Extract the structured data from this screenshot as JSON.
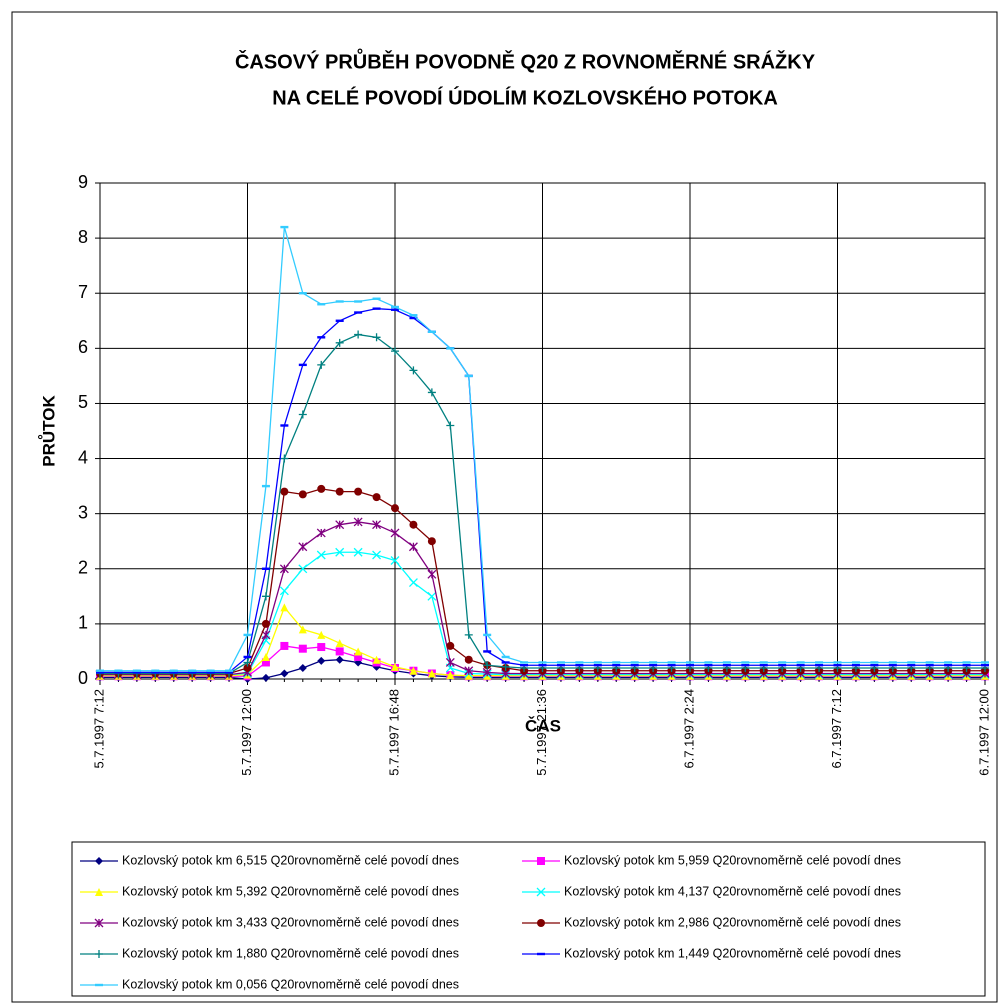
{
  "chart_data": {
    "type": "line",
    "title": [
      "ČASOVÝ PRŮBĚH POVODNĚ Q20 Z ROVNOMĚRNÉ SRÁŽKY",
      "NA CELÉ POVODÍ ÚDOLÍM KOZLOVSKÉHO POTOKA"
    ],
    "x_label": "ČAS",
    "y_label": "PRŮTOK",
    "categories": [
      "5.7.1997 7:12",
      null,
      null,
      null,
      null,
      null,
      null,
      null,
      "5.7.1997 12:00",
      null,
      null,
      null,
      null,
      null,
      null,
      null,
      "5.7.1997 16:48",
      null,
      null,
      null,
      null,
      null,
      null,
      null,
      "5.7.1997 21:36",
      null,
      null,
      null,
      null,
      null,
      null,
      null,
      "6.7.1997 2:24",
      null,
      null,
      null,
      null,
      null,
      null,
      null,
      "6.7.1997 7:12",
      null,
      null,
      null,
      null,
      null,
      null,
      null,
      "6.7.1997 12:00"
    ],
    "ylim": [
      0,
      9
    ],
    "yticks": [
      0,
      1,
      2,
      3,
      4,
      5,
      6,
      7,
      8,
      9
    ],
    "grid": true,
    "legend": "bottom",
    "series": [
      {
        "name": "Kozlovský potok km 6,515 Q20rovnoměrně celé povodí dnes",
        "color": "#000080",
        "marker": "diamond",
        "values": [
          0.03,
          0.03,
          0.03,
          0.03,
          0.03,
          0.03,
          0.03,
          0.03,
          0,
          0.02,
          0.1,
          0.2,
          0.33,
          0.35,
          0.3,
          0.22,
          0.15,
          0.1,
          0.06,
          0.04,
          0.03,
          0.03,
          0.03,
          0.03,
          0.03,
          0.03,
          0.03,
          0.03,
          0.03,
          0.03,
          0.03,
          0.03,
          0.03,
          0.03,
          0.03,
          0.03,
          0.03,
          0.03,
          0.03,
          0.03,
          0.03,
          0.03,
          0.03,
          0.03,
          0.03,
          0.03,
          0.03,
          0.03,
          0.03
        ]
      },
      {
        "name": "Kozlovský potok km 5,959 Q20rovnoměrně celé povodí dnes",
        "color": "#ff00ff",
        "marker": "square",
        "values": [
          0.05,
          0.05,
          0.05,
          0.05,
          0.05,
          0.05,
          0.05,
          0.05,
          0.05,
          0.3,
          0.6,
          0.55,
          0.58,
          0.5,
          0.4,
          0.3,
          0.2,
          0.15,
          0.1,
          0.07,
          0.05,
          0.05,
          0.05,
          0.05,
          0.05,
          0.05,
          0.05,
          0.05,
          0.05,
          0.05,
          0.05,
          0.05,
          0.05,
          0.05,
          0.05,
          0.05,
          0.05,
          0.05,
          0.05,
          0.05,
          0.05,
          0.05,
          0.05,
          0.05,
          0.05,
          0.05,
          0.05,
          0.05,
          0.05
        ]
      },
      {
        "name": "Kozlovský potok km 5,392 Q20rovnoměrně celé povodí dnes",
        "color": "#ffff00",
        "marker": "triangle",
        "values": [
          0.06,
          0.06,
          0.06,
          0.06,
          0.06,
          0.06,
          0.06,
          0.06,
          0.08,
          0.4,
          1.3,
          0.9,
          0.8,
          0.65,
          0.5,
          0.35,
          0.22,
          0.15,
          0.1,
          0.07,
          0.06,
          0.06,
          0.06,
          0.06,
          0.06,
          0.06,
          0.06,
          0.06,
          0.06,
          0.06,
          0.06,
          0.06,
          0.06,
          0.06,
          0.06,
          0.06,
          0.06,
          0.06,
          0.06,
          0.06,
          0.06,
          0.06,
          0.06,
          0.06,
          0.06,
          0.06,
          0.06,
          0.06,
          0.06
        ]
      },
      {
        "name": "Kozlovský potok km 4,137 Q20rovnoměrně celé povodí dnes",
        "color": "#00ffff",
        "marker": "x",
        "values": [
          0.08,
          0.08,
          0.08,
          0.08,
          0.08,
          0.08,
          0.08,
          0.08,
          0.1,
          0.7,
          1.6,
          2.0,
          2.25,
          2.3,
          2.3,
          2.25,
          2.15,
          1.75,
          1.5,
          0.2,
          0.1,
          0.09,
          0.08,
          0.08,
          0.08,
          0.08,
          0.08,
          0.08,
          0.08,
          0.08,
          0.08,
          0.08,
          0.08,
          0.08,
          0.08,
          0.08,
          0.08,
          0.08,
          0.08,
          0.08,
          0.08,
          0.08,
          0.08,
          0.08,
          0.08,
          0.08,
          0.08,
          0.08,
          0.08
        ]
      },
      {
        "name": "Kozlovský potok km 3,433 Q20rovnoměrně celé povodí dnes",
        "color": "#800080",
        "marker": "star",
        "values": [
          0.08,
          0.08,
          0.08,
          0.08,
          0.08,
          0.08,
          0.08,
          0.08,
          0.12,
          0.8,
          2.0,
          2.4,
          2.65,
          2.8,
          2.85,
          2.8,
          2.65,
          2.4,
          1.9,
          0.3,
          0.15,
          0.12,
          0.1,
          0.1,
          0.1,
          0.1,
          0.1,
          0.1,
          0.1,
          0.1,
          0.1,
          0.1,
          0.1,
          0.1,
          0.1,
          0.1,
          0.1,
          0.1,
          0.1,
          0.1,
          0.1,
          0.1,
          0.1,
          0.1,
          0.1,
          0.1,
          0.1,
          0.1,
          0.1
        ]
      },
      {
        "name": "Kozlovský potok km 2,986 Q20rovnoměrně celé povodí dnes",
        "color": "#800000",
        "marker": "circle",
        "values": [
          0.1,
          0.1,
          0.1,
          0.1,
          0.1,
          0.1,
          0.1,
          0.1,
          0.2,
          1.0,
          3.4,
          3.35,
          3.45,
          3.4,
          3.4,
          3.3,
          3.1,
          2.8,
          2.5,
          0.6,
          0.35,
          0.25,
          0.2,
          0.15,
          0.15,
          0.15,
          0.15,
          0.15,
          0.15,
          0.15,
          0.15,
          0.15,
          0.15,
          0.15,
          0.15,
          0.15,
          0.15,
          0.15,
          0.15,
          0.15,
          0.15,
          0.15,
          0.15,
          0.15,
          0.15,
          0.15,
          0.15,
          0.15,
          0.15
        ]
      },
      {
        "name": "Kozlovský potok km 1,880 Q20rovnoměrně celé povodí dnes",
        "color": "#008080",
        "marker": "plus",
        "values": [
          0.1,
          0.1,
          0.1,
          0.1,
          0.1,
          0.1,
          0.1,
          0.1,
          0.3,
          1.5,
          4.0,
          4.8,
          5.7,
          6.1,
          6.25,
          6.2,
          5.95,
          5.6,
          5.2,
          4.6,
          0.8,
          0.25,
          0.22,
          0.2,
          0.2,
          0.2,
          0.2,
          0.2,
          0.2,
          0.2,
          0.2,
          0.2,
          0.2,
          0.2,
          0.2,
          0.2,
          0.2,
          0.2,
          0.2,
          0.2,
          0.2,
          0.2,
          0.2,
          0.2,
          0.2,
          0.2,
          0.2,
          0.2,
          0.2
        ]
      },
      {
        "name": "Kozlovský potok km 1,449 Q20rovnoměrně celé povodí dnes",
        "color": "#0000ff",
        "marker": "dash",
        "values": [
          0.12,
          0.12,
          0.12,
          0.12,
          0.12,
          0.12,
          0.12,
          0.12,
          0.4,
          2.0,
          4.6,
          5.7,
          6.2,
          6.5,
          6.65,
          6.72,
          6.7,
          6.55,
          6.3,
          6.0,
          5.5,
          0.5,
          0.3,
          0.25,
          0.25,
          0.25,
          0.25,
          0.25,
          0.25,
          0.25,
          0.25,
          0.25,
          0.25,
          0.25,
          0.25,
          0.25,
          0.25,
          0.25,
          0.25,
          0.25,
          0.25,
          0.25,
          0.25,
          0.25,
          0.25,
          0.25,
          0.25,
          0.25,
          0.25
        ]
      },
      {
        "name": "Kozlovský potok km 0,056 Q20rovnoměrně celé povodí dnes",
        "color": "#33ccff",
        "marker": "dash",
        "values": [
          0.15,
          0.15,
          0.15,
          0.15,
          0.15,
          0.15,
          0.15,
          0.15,
          0.8,
          3.5,
          8.2,
          7.0,
          6.8,
          6.85,
          6.85,
          6.9,
          6.75,
          6.6,
          6.3,
          6.0,
          5.5,
          0.8,
          0.4,
          0.3,
          0.3,
          0.3,
          0.3,
          0.3,
          0.3,
          0.3,
          0.3,
          0.3,
          0.3,
          0.3,
          0.3,
          0.3,
          0.3,
          0.3,
          0.3,
          0.3,
          0.3,
          0.3,
          0.3,
          0.3,
          0.3,
          0.3,
          0.3,
          0.3,
          0.3
        ]
      }
    ]
  }
}
